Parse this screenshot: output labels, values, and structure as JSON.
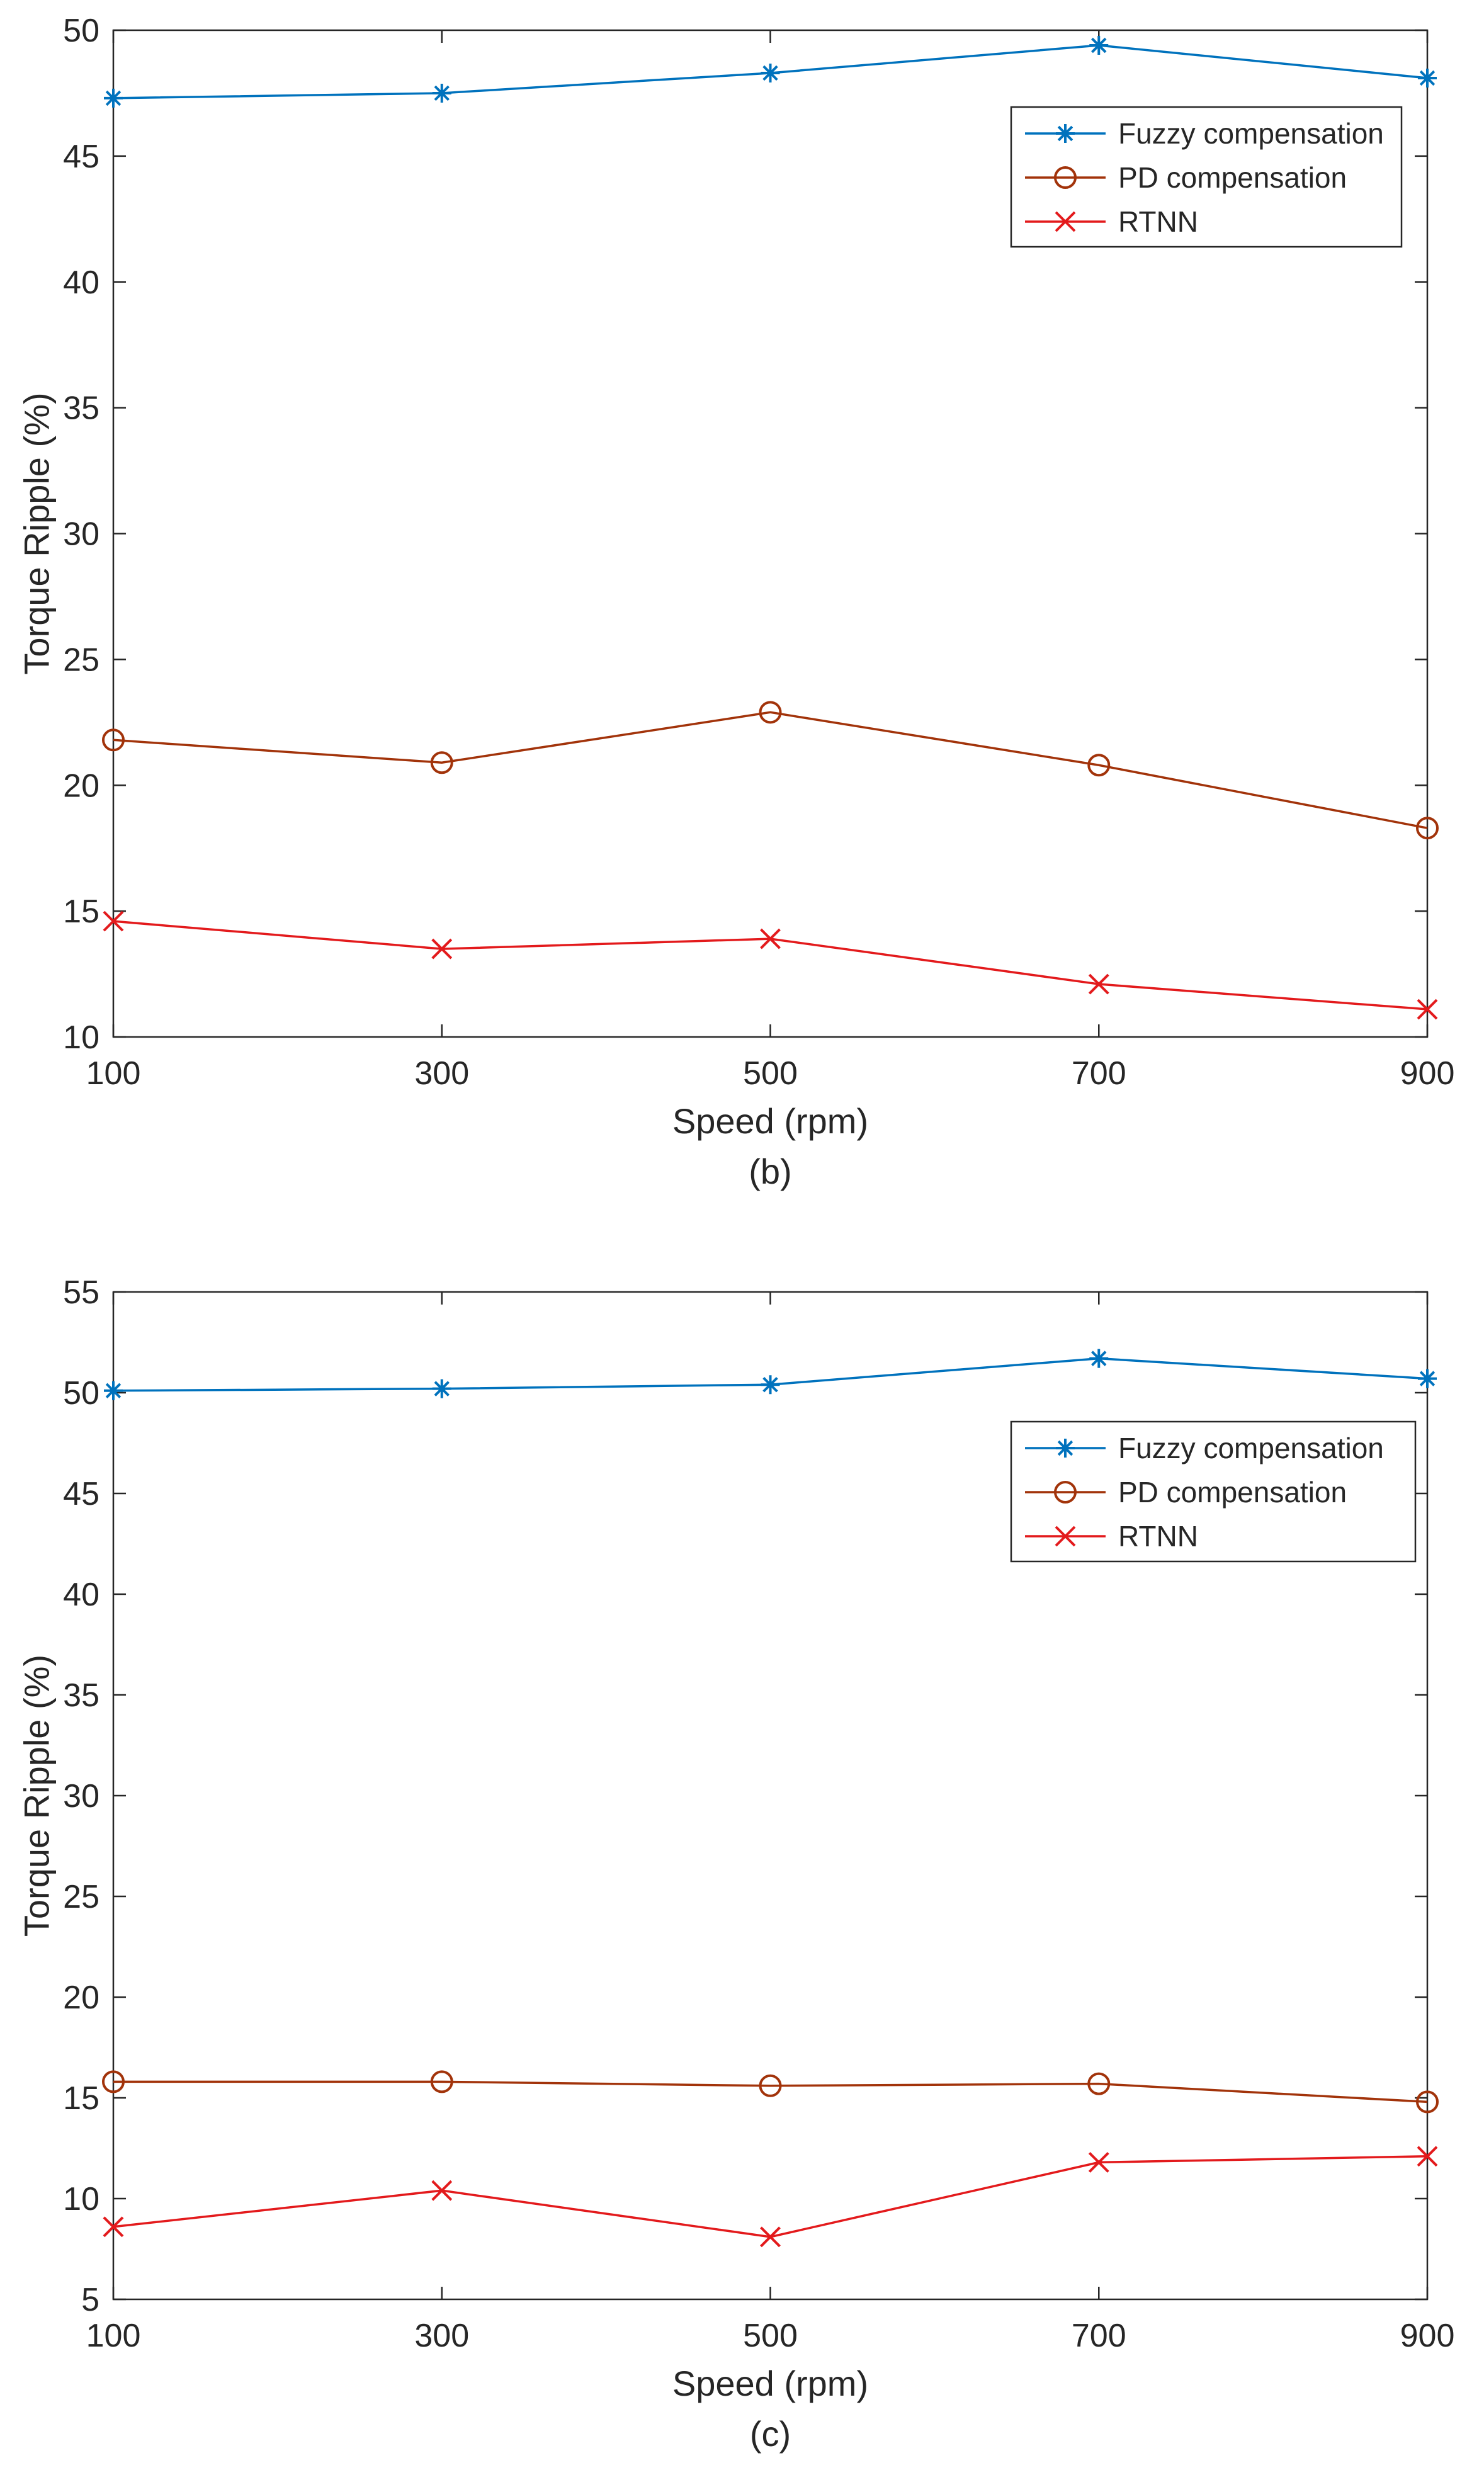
{
  "chart_data": [
    {
      "type": "line",
      "panel_label": "(b)",
      "xlabel": "Speed (rpm)",
      "ylabel": "Torque Ripple (%)",
      "x": [
        100,
        300,
        500,
        700,
        900
      ],
      "x_tick_labels": [
        "100",
        "300",
        "500",
        "700",
        "900"
      ],
      "xlim": [
        100,
        900
      ],
      "ylim": [
        10,
        50
      ],
      "y_ticks": [
        10,
        15,
        20,
        25,
        30,
        35,
        40,
        45,
        50
      ],
      "grid": false,
      "legend_position": "top-right",
      "series": [
        {
          "name": "Fuzzy compensation",
          "color": "#0072BD",
          "marker": "asterisk",
          "values": [
            47.3,
            47.5,
            48.3,
            49.4,
            48.1
          ]
        },
        {
          "name": "PD compensation",
          "color": "#A2330A",
          "marker": "circle",
          "values": [
            21.8,
            20.9,
            22.9,
            20.8,
            18.3
          ]
        },
        {
          "name": "RTNN",
          "color": "#E31A1C",
          "marker": "x",
          "values": [
            14.6,
            13.5,
            13.9,
            12.1,
            11.1
          ]
        }
      ]
    },
    {
      "type": "line",
      "panel_label": "(c)",
      "xlabel": "Speed (rpm)",
      "ylabel": "Torque Ripple (%)",
      "x": [
        100,
        300,
        500,
        700,
        900
      ],
      "x_tick_labels": [
        "100",
        "300",
        "500",
        "700",
        "900"
      ],
      "xlim": [
        100,
        900
      ],
      "ylim": [
        5,
        55
      ],
      "y_ticks": [
        5,
        10,
        15,
        20,
        25,
        30,
        35,
        40,
        45,
        50,
        55
      ],
      "grid": false,
      "legend_position": "top-right",
      "series": [
        {
          "name": "Fuzzy compensation",
          "color": "#0072BD",
          "marker": "asterisk",
          "values": [
            50.1,
            50.2,
            50.4,
            51.7,
            50.7
          ]
        },
        {
          "name": "PD compensation",
          "color": "#A2330A",
          "marker": "circle",
          "values": [
            15.8,
            15.8,
            15.6,
            15.7,
            14.8
          ]
        },
        {
          "name": "RTNN",
          "color": "#E31A1C",
          "marker": "x",
          "values": [
            8.6,
            10.4,
            8.1,
            11.8,
            12.1
          ]
        }
      ]
    }
  ]
}
